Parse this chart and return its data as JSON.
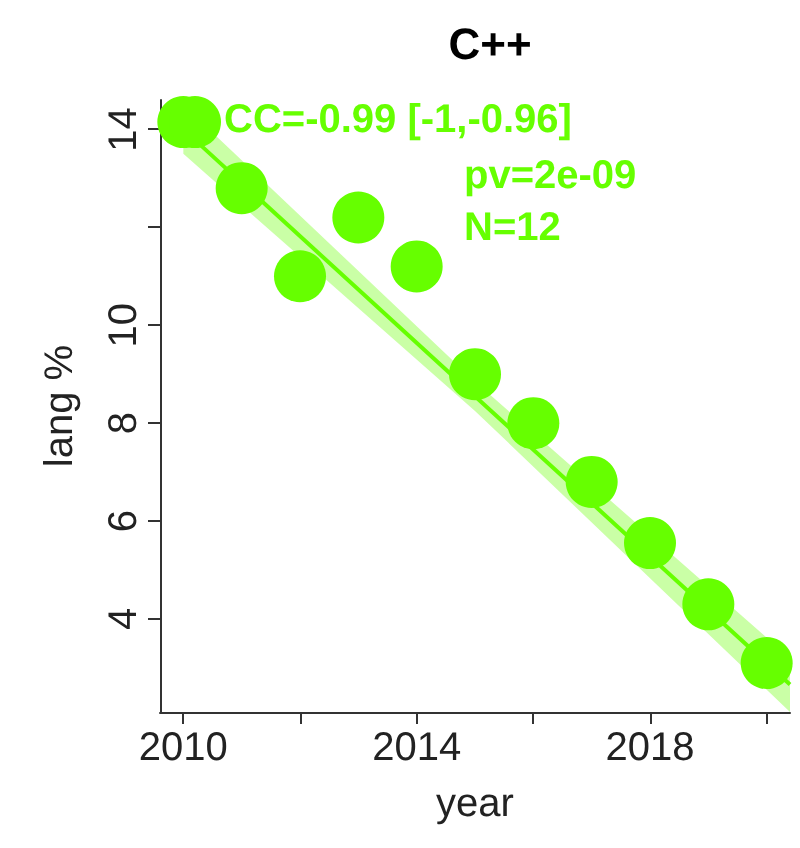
{
  "chart_data": {
    "type": "scatter",
    "title": "C++",
    "xlabel": "year",
    "ylabel": "lang %",
    "annotations": [
      "CC=-0.99 [-1,-0.96]",
      "pv=2e-09",
      "N=12"
    ],
    "x": [
      2010,
      2010.2,
      2011,
      2012,
      2013,
      2014,
      2015,
      2016,
      2017,
      2018,
      2019,
      2020
    ],
    "series": [
      {
        "color": "#66ff00",
        "marker": "circle",
        "values": [
          14.15,
          14.15,
          12.8,
          11.0,
          12.2,
          11.2,
          9.0,
          8.0,
          6.8,
          5.55,
          4.3,
          3.1
        ]
      },
      {
        "type": "line",
        "color": "#66ff00",
        "x": [
          2010,
          2015,
          2020.4
        ],
        "values": [
          14.0,
          8.55,
          2.66
        ],
        "lower": [
          13.5,
          8.25,
          2.1
        ],
        "upper": [
          14.5,
          8.85,
          3.2
        ],
        "marker": "none"
      }
    ],
    "xlim": [
      2009.6,
      2020.4
    ],
    "xticks": [
      2010,
      {
        "value": 2012,
        "label": null
      },
      2014,
      {
        "value": 2016,
        "label": null
      },
      2018,
      {
        "value": 2020,
        "label": null
      }
    ],
    "ylim": [
      2.1,
      14.6
    ],
    "yticks": [
      4,
      6,
      8,
      10,
      {
        "value": 12,
        "label": null
      },
      14
    ],
    "grid": false
  }
}
